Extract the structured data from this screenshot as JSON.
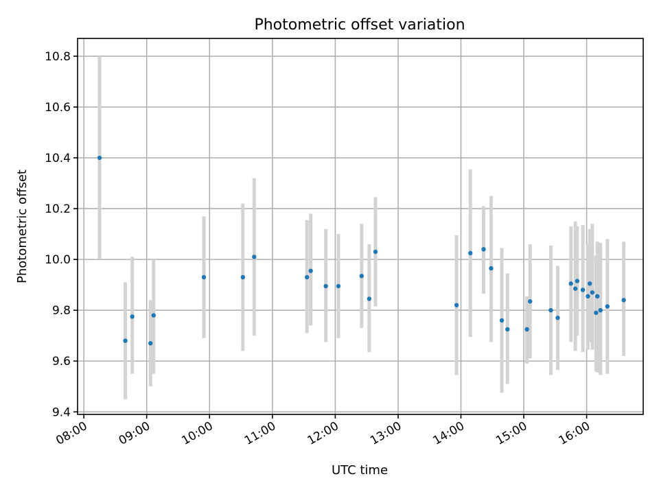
{
  "chart_data": {
    "type": "scatter",
    "title": "Photometric offset variation",
    "xlabel": "UTC time",
    "ylabel": "Photometric offset",
    "x_unit": "hours",
    "xlim": [
      7.9,
      16.9
    ],
    "ylim": [
      9.39,
      10.87
    ],
    "x_ticks": [
      8,
      9,
      10,
      11,
      12,
      13,
      14,
      15,
      16
    ],
    "x_tick_labels": [
      "08:00",
      "09:00",
      "10:00",
      "11:00",
      "12:00",
      "13:00",
      "14:00",
      "15:00",
      "16:00"
    ],
    "y_ticks": [
      9.4,
      9.6,
      9.8,
      10.0,
      10.2,
      10.4,
      10.6,
      10.8
    ],
    "y_tick_labels": [
      "9.4",
      "9.6",
      "9.8",
      "10.0",
      "10.2",
      "10.4",
      "10.6",
      "10.8"
    ],
    "grid": true,
    "colors": {
      "point": "#1f77b4",
      "errorbar": "#d3d3d3"
    },
    "points": [
      {
        "x": 8.25,
        "y": 10.4,
        "lo": 10.0,
        "hi": 10.8
      },
      {
        "x": 8.66,
        "y": 9.68,
        "lo": 9.45,
        "hi": 9.91
      },
      {
        "x": 8.77,
        "y": 9.775,
        "lo": 9.55,
        "hi": 10.01
      },
      {
        "x": 9.06,
        "y": 9.67,
        "lo": 9.5,
        "hi": 9.84
      },
      {
        "x": 9.11,
        "y": 9.78,
        "lo": 9.55,
        "hi": 10.0
      },
      {
        "x": 9.91,
        "y": 9.93,
        "lo": 9.69,
        "hi": 10.17
      },
      {
        "x": 10.53,
        "y": 9.93,
        "lo": 9.64,
        "hi": 10.22
      },
      {
        "x": 10.71,
        "y": 10.01,
        "lo": 9.7,
        "hi": 10.32
      },
      {
        "x": 11.55,
        "y": 9.93,
        "lo": 9.71,
        "hi": 10.155
      },
      {
        "x": 11.61,
        "y": 9.955,
        "lo": 9.74,
        "hi": 10.18
      },
      {
        "x": 11.85,
        "y": 9.895,
        "lo": 9.675,
        "hi": 10.12
      },
      {
        "x": 12.05,
        "y": 9.895,
        "lo": 9.69,
        "hi": 10.1
      },
      {
        "x": 12.42,
        "y": 9.935,
        "lo": 9.73,
        "hi": 10.14
      },
      {
        "x": 12.54,
        "y": 9.845,
        "lo": 9.635,
        "hi": 10.06
      },
      {
        "x": 12.64,
        "y": 10.03,
        "lo": 9.815,
        "hi": 10.245
      },
      {
        "x": 13.93,
        "y": 9.82,
        "lo": 9.545,
        "hi": 10.095
      },
      {
        "x": 14.15,
        "y": 10.025,
        "lo": 9.695,
        "hi": 10.355
      },
      {
        "x": 14.36,
        "y": 10.04,
        "lo": 9.865,
        "hi": 10.21
      },
      {
        "x": 14.48,
        "y": 9.965,
        "lo": 9.675,
        "hi": 10.25
      },
      {
        "x": 14.65,
        "y": 9.76,
        "lo": 9.475,
        "hi": 10.045
      },
      {
        "x": 14.74,
        "y": 9.725,
        "lo": 9.51,
        "hi": 9.945
      },
      {
        "x": 15.05,
        "y": 9.725,
        "lo": 9.59,
        "hi": 9.855
      },
      {
        "x": 15.1,
        "y": 9.835,
        "lo": 9.61,
        "hi": 10.06
      },
      {
        "x": 15.43,
        "y": 9.8,
        "lo": 9.545,
        "hi": 10.055
      },
      {
        "x": 15.54,
        "y": 9.77,
        "lo": 9.565,
        "hi": 9.975
      },
      {
        "x": 15.75,
        "y": 9.905,
        "lo": 9.675,
        "hi": 10.13
      },
      {
        "x": 15.82,
        "y": 9.885,
        "lo": 9.64,
        "hi": 10.15
      },
      {
        "x": 15.85,
        "y": 9.915,
        "lo": 9.7,
        "hi": 10.13
      },
      {
        "x": 15.94,
        "y": 9.88,
        "lo": 9.635,
        "hi": 10.135
      },
      {
        "x": 16.02,
        "y": 9.855,
        "lo": 9.645,
        "hi": 10.06
      },
      {
        "x": 16.05,
        "y": 9.905,
        "lo": 9.675,
        "hi": 10.12
      },
      {
        "x": 16.09,
        "y": 9.87,
        "lo": 9.645,
        "hi": 10.14
      },
      {
        "x": 16.15,
        "y": 9.79,
        "lo": 9.56,
        "hi": 10.015
      },
      {
        "x": 16.17,
        "y": 9.855,
        "lo": 9.555,
        "hi": 10.07
      },
      {
        "x": 16.22,
        "y": 9.8,
        "lo": 9.545,
        "hi": 10.065
      },
      {
        "x": 16.33,
        "y": 9.815,
        "lo": 9.55,
        "hi": 10.08
      },
      {
        "x": 16.59,
        "y": 9.84,
        "lo": 9.62,
        "hi": 10.07
      }
    ]
  }
}
